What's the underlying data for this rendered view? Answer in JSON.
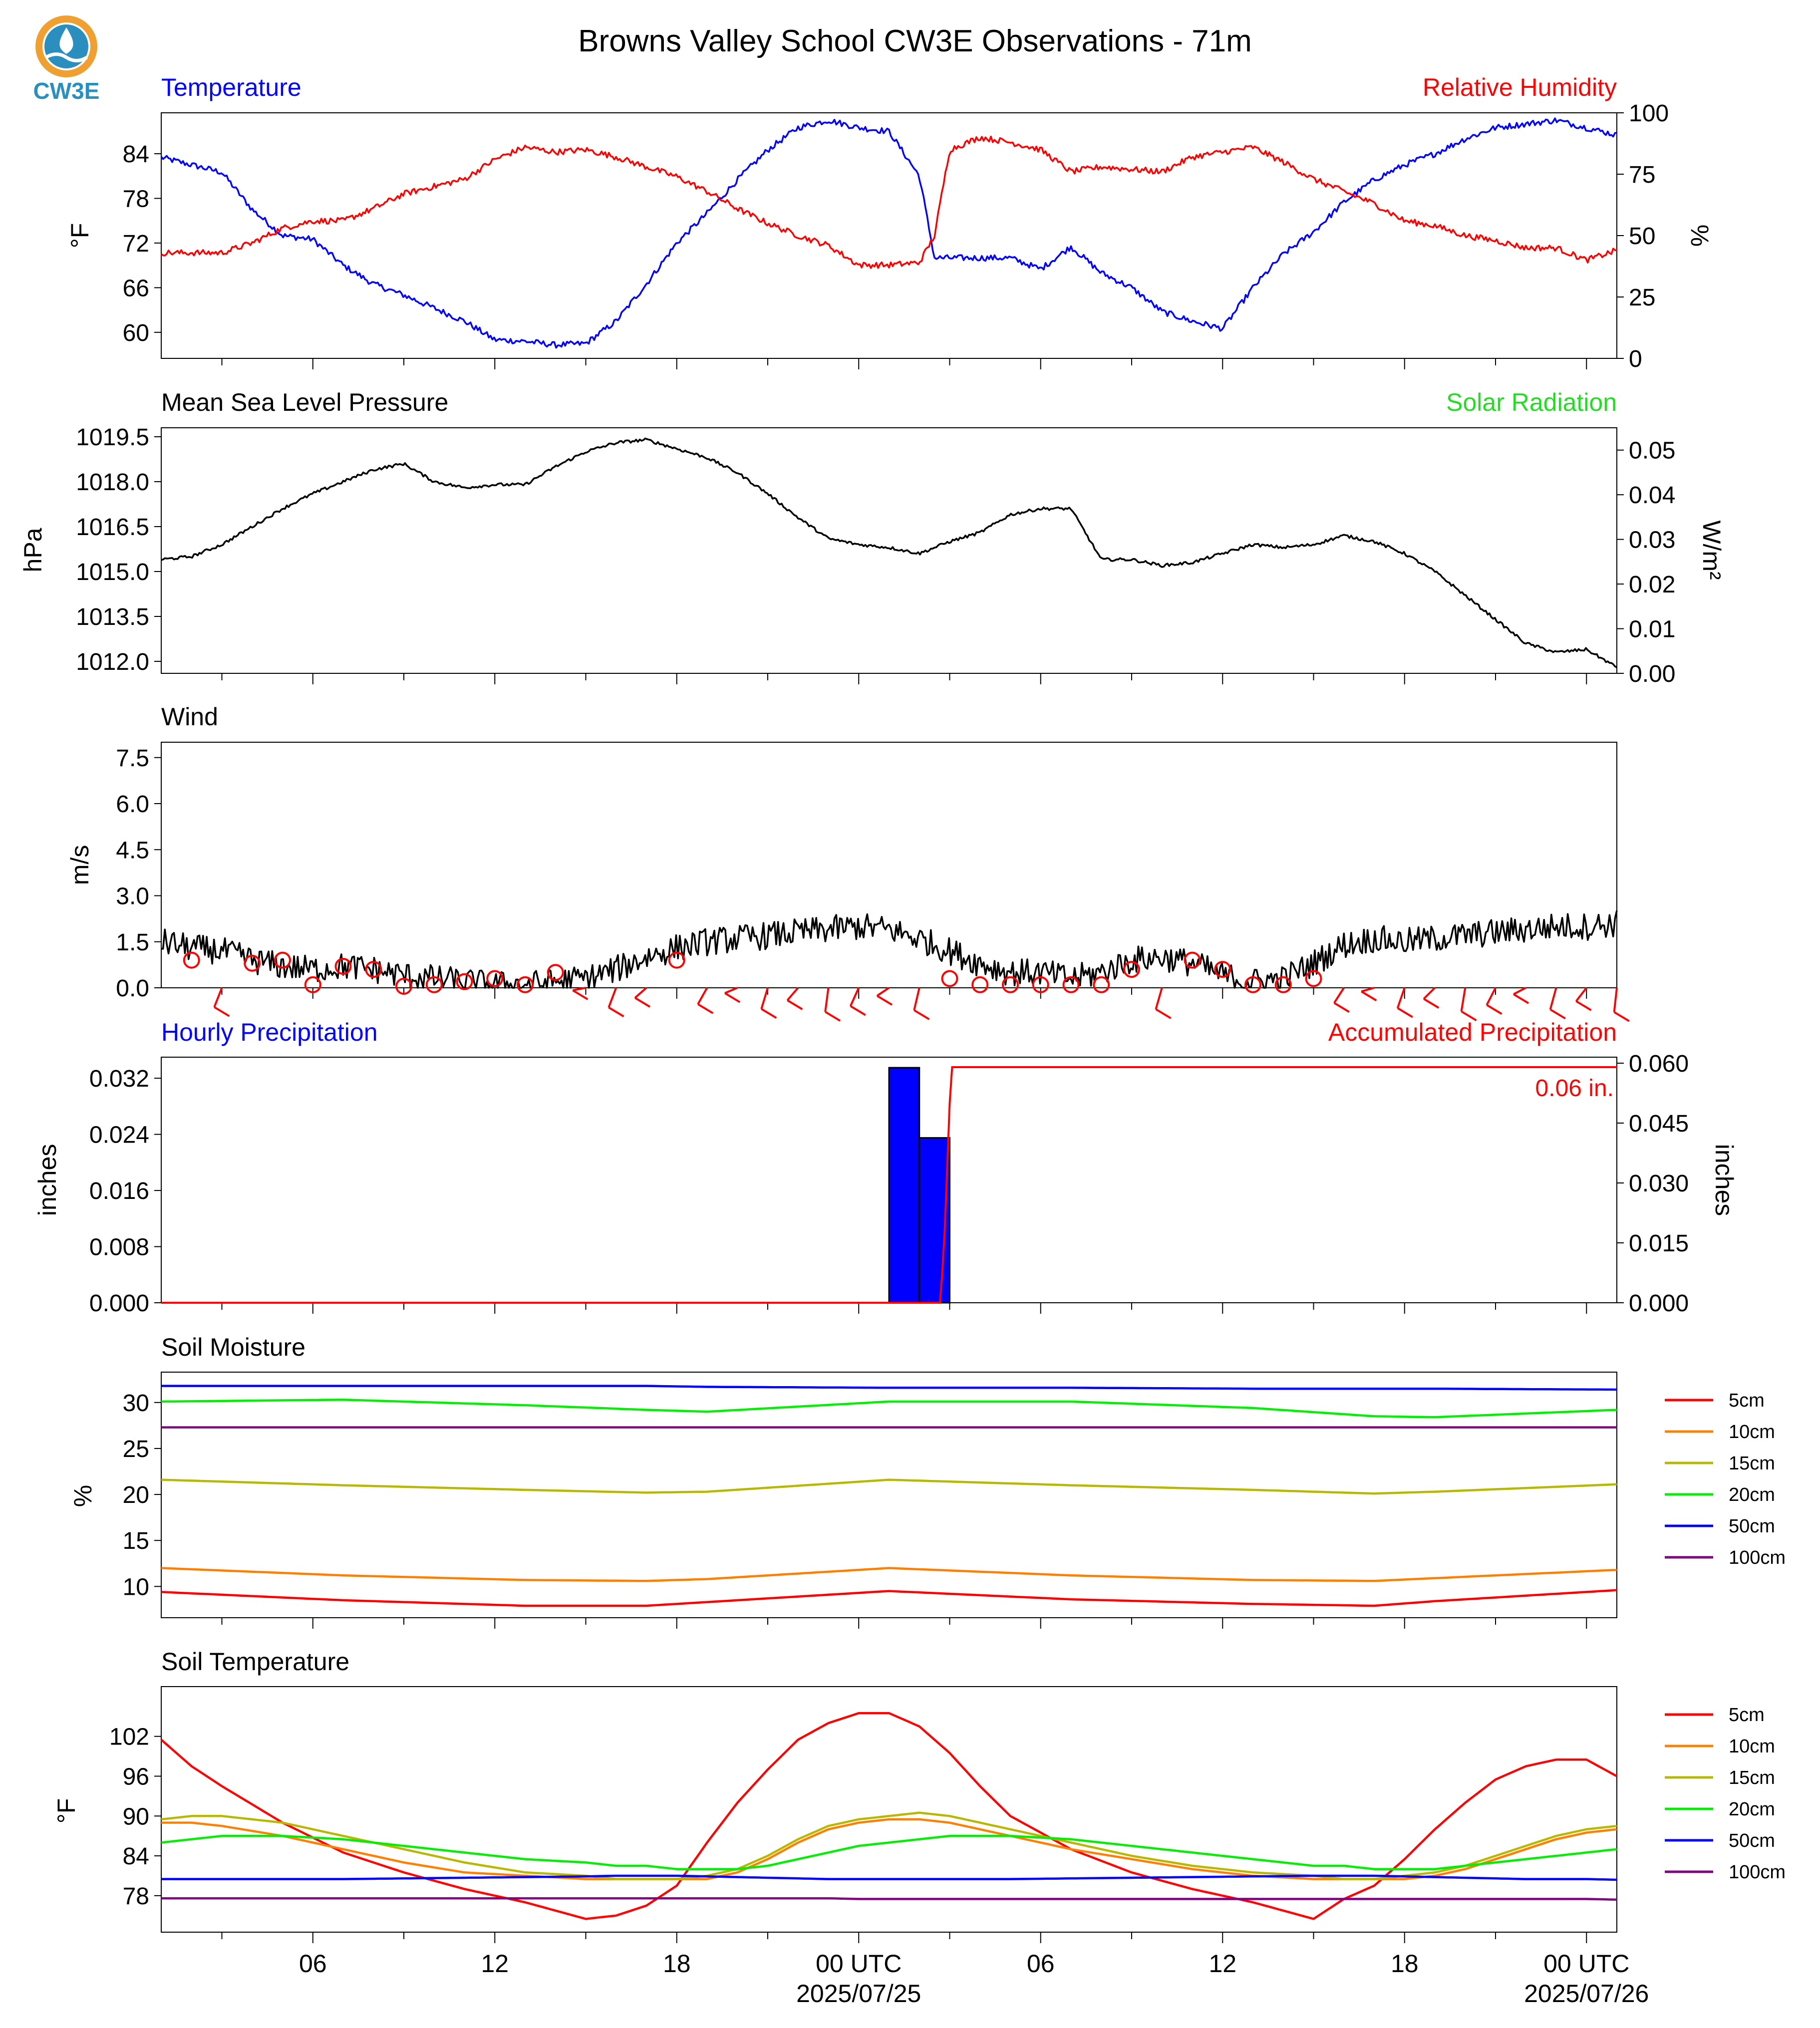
{
  "page": {
    "title": "Browns Valley School CW3E Observations - 71m",
    "logo_text": "CW3E",
    "logo_colors": {
      "ring": "#f0a030",
      "drop": "#2a8fbf",
      "wave": "#1f7fb0",
      "text": "#2a8fbf"
    }
  },
  "chart_data": [
    {
      "id": "temp_rh",
      "type": "line",
      "title_left": "Temperature",
      "title_right": "Relative Humidity",
      "title_left_color": "#0000ff",
      "title_right_color": "#ff0000",
      "ylabel": "°F",
      "ylabel_right": "%",
      "ylim": [
        56.5,
        89.5
      ],
      "yticks": [
        60,
        66,
        72,
        78,
        84
      ],
      "ylim_right": [
        0,
        100
      ],
      "yticks_right": [
        0,
        25,
        50,
        75,
        100
      ],
      "x_hours": [
        0,
        2,
        3,
        4,
        5,
        6,
        7,
        8,
        10,
        11,
        12,
        13,
        14,
        15,
        16,
        17,
        18,
        19,
        20,
        21,
        22,
        23,
        24,
        25,
        25.5,
        26,
        27,
        28,
        29,
        30,
        31,
        32,
        33,
        34,
        35,
        36,
        37,
        38,
        39,
        40,
        41,
        42,
        43,
        44,
        45,
        46,
        47,
        48
      ],
      "series": [
        {
          "name": "Temperature",
          "color": "#0000ff",
          "axis": "left",
          "noise": 0.4,
          "values": [
            83.5,
            81.5,
            76.5,
            73,
            72.5,
            69,
            66.5,
            65,
            61.5,
            59,
            58.8,
            58.3,
            58.5,
            61.5,
            66.5,
            72,
            76,
            80.5,
            84.5,
            87.5,
            88.5,
            87.5,
            87,
            81,
            70,
            70,
            70,
            70,
            68.5,
            71.5,
            68,
            66,
            62.8,
            61.5,
            60.5,
            66,
            70.5,
            73.5,
            77.5,
            80.5,
            82.5,
            84,
            86,
            87.5,
            88,
            88.5,
            87.5,
            86.5
          ]
        },
        {
          "name": "Relative Humidity",
          "color": "#ff0000",
          "axis": "right",
          "noise": 1.2,
          "values": [
            43,
            43,
            47,
            53,
            56,
            56,
            61,
            67,
            73,
            81,
            86,
            84,
            85,
            82,
            78,
            74,
            68,
            61,
            55,
            50,
            46,
            38,
            38,
            39,
            50,
            85,
            90,
            88,
            85,
            76,
            78,
            77,
            76,
            82,
            84,
            86,
            80,
            73,
            68,
            63,
            56,
            54,
            50,
            48,
            45,
            45,
            40,
            44
          ]
        }
      ]
    },
    {
      "id": "pressure",
      "type": "line",
      "title_left": "Mean Sea Level Pressure",
      "title_right": "Solar Radiation",
      "title_left_color": "#000000",
      "title_right_color": "#22dd22",
      "ylabel": "hPa",
      "ylabel_right": "W/m²",
      "ylim": [
        1011.6,
        1019.8
      ],
      "yticks": [
        1012.0,
        1013.5,
        1015.0,
        1016.5,
        1018.0,
        1019.5
      ],
      "ylim_right": [
        0.0,
        0.055
      ],
      "yticks_right": [
        0.0,
        0.01,
        0.02,
        0.03,
        0.04,
        0.05
      ],
      "x_hours": [
        0,
        1,
        2,
        3,
        4,
        5,
        6,
        7,
        8,
        9,
        10,
        11,
        12,
        13,
        14,
        15,
        16,
        17,
        18,
        19,
        20,
        21,
        22,
        23,
        24,
        25,
        26,
        27,
        28,
        29,
        30,
        31,
        32,
        33,
        34,
        35,
        36,
        37,
        38,
        39,
        40,
        41,
        42,
        43,
        44,
        45,
        46,
        47,
        48
      ],
      "series": [
        {
          "name": "Mean Sea Level Pressure",
          "color": "#000000",
          "axis": "left",
          "noise": 0.05,
          "values": [
            1015.4,
            1015.5,
            1015.9,
            1016.5,
            1017.1,
            1017.6,
            1018.0,
            1018.4,
            1018.6,
            1018.0,
            1017.8,
            1017.9,
            1017.9,
            1018.5,
            1019.0,
            1019.3,
            1019.4,
            1019.1,
            1018.8,
            1018.3,
            1017.6,
            1016.8,
            1016.1,
            1015.9,
            1015.8,
            1015.6,
            1016.0,
            1016.3,
            1016.9,
            1017.1,
            1017.1,
            1015.4,
            1015.4,
            1015.2,
            1015.3,
            1015.6,
            1015.9,
            1015.8,
            1015.9,
            1016.2,
            1016.0,
            1015.6,
            1015.0,
            1014.2,
            1013.4,
            1012.6,
            1012.3,
            1012.4,
            1011.8
          ]
        }
      ]
    },
    {
      "id": "wind",
      "type": "line",
      "title_left": "Wind",
      "title_left_color": "#000000",
      "ylabel": "m/s",
      "ylim": [
        0.0,
        8.0
      ],
      "yticks": [
        0.0,
        1.5,
        3.0,
        4.5,
        6.0,
        7.5
      ],
      "x_hours": [
        0,
        1,
        2,
        3,
        4,
        5,
        6,
        7,
        8,
        9,
        10,
        11,
        12,
        13,
        14,
        15,
        16,
        17,
        18,
        19,
        20,
        21,
        22,
        23,
        24,
        25,
        26,
        27,
        28,
        29,
        30,
        31,
        32,
        33,
        34,
        35,
        36,
        37,
        38,
        39,
        40,
        41,
        42,
        43,
        44,
        45,
        46,
        47,
        48
      ],
      "series": [
        {
          "name": "Wind speed",
          "color": "#000000",
          "noise": 0.45,
          "values": [
            1.5,
            1.3,
            1.2,
            0.9,
            0.7,
            0.6,
            0.7,
            0.6,
            0.4,
            0.3,
            0.2,
            0.1,
            0.1,
            0.2,
            0.3,
            0.6,
            1.0,
            1.3,
            1.5,
            1.6,
            1.7,
            1.8,
            1.9,
            2.0,
            1.9,
            1.6,
            1.2,
            0.8,
            0.5,
            0.5,
            0.3,
            0.5,
            0.9,
            1.0,
            0.8,
            0.4,
            0.2,
            0.3,
            0.8,
            1.4,
            1.6,
            1.5,
            1.6,
            1.7,
            1.8,
            1.9,
            2.0,
            2.0,
            2.1
          ]
        }
      ],
      "barbs_color": "#ff0000",
      "barb_hours": [
        1,
        2,
        3,
        4,
        5,
        6,
        7,
        8,
        9,
        10,
        11,
        12,
        13,
        14,
        15,
        16,
        17,
        18,
        19,
        20,
        21,
        22,
        23,
        24,
        25,
        26,
        27,
        28,
        29,
        30,
        31,
        32,
        33,
        34,
        35,
        36,
        37,
        38,
        39,
        40,
        41,
        42,
        43,
        44,
        45,
        46,
        47,
        48
      ],
      "barb_speeds": [
        0.9,
        1.4,
        0.8,
        0.9,
        0.1,
        0.7,
        0.6,
        0.0,
        0.1,
        0.2,
        0.3,
        0.1,
        0.5,
        1.0,
        1.0,
        1.0,
        0.9,
        1.2,
        1.4,
        1.6,
        1.8,
        1.9,
        1.6,
        1.4,
        1.0,
        0.3,
        0.1,
        0.1,
        0.1,
        0.1,
        0.1,
        0.6,
        1.0,
        0.9,
        0.6,
        0.1,
        0.1,
        0.3,
        1.3,
        1.3,
        1.6,
        1.8,
        2.0,
        2.0,
        2.1,
        2.2,
        2.2,
        2.4
      ]
    },
    {
      "id": "precip",
      "type": "bar",
      "title_left": "Hourly Precipitation",
      "title_right": "Accumulated Precipitation",
      "title_left_color": "#0000ff",
      "title_right_color": "#ff0000",
      "ylabel": "inches",
      "ylabel_right": "inches",
      "ylim": [
        0.0,
        0.035
      ],
      "yticks": [
        0.0,
        0.008,
        0.016,
        0.024,
        0.032
      ],
      "ylim_right": [
        0.0,
        0.0615
      ],
      "yticks_right": [
        0.0,
        0.015,
        0.03,
        0.045,
        0.06
      ],
      "bars": [
        {
          "x_hours": 25.0,
          "value": 0.0335
        },
        {
          "x_hours": 26.0,
          "value": 0.0235
        }
      ],
      "bar_color": "#0000ff",
      "accum_color": "#ff0000",
      "accum_x_hours": [
        0,
        25.7,
        25.85,
        26.0,
        26.05,
        48
      ],
      "accum_values": [
        0.0,
        0.0,
        0.02,
        0.05,
        0.059,
        0.059
      ],
      "accum_label": "0.06 in."
    },
    {
      "id": "soil_moisture",
      "type": "line",
      "title_left": "Soil Moisture",
      "title_left_color": "#000000",
      "ylabel": "%",
      "ylim": [
        6.6,
        33.3
      ],
      "yticks": [
        10,
        15,
        20,
        25,
        30
      ],
      "x_hours": [
        0,
        6,
        12,
        16,
        18,
        24,
        30,
        36,
        40,
        42,
        48
      ],
      "series": [
        {
          "name": "5cm",
          "color": "#ff0000",
          "values": [
            9.4,
            8.5,
            7.9,
            7.9,
            8.3,
            9.5,
            8.6,
            8.1,
            7.9,
            8.4,
            9.6
          ]
        },
        {
          "name": "10cm",
          "color": "#ff8000",
          "values": [
            12.0,
            11.2,
            10.7,
            10.6,
            10.8,
            12.0,
            11.2,
            10.7,
            10.6,
            10.9,
            11.8
          ]
        },
        {
          "name": "15cm",
          "color": "#b8b800",
          "values": [
            21.6,
            21.0,
            20.5,
            20.2,
            20.3,
            21.6,
            21.0,
            20.5,
            20.1,
            20.3,
            21.1
          ]
        },
        {
          "name": "20cm",
          "color": "#00ee00",
          "values": [
            30.1,
            30.3,
            29.7,
            29.2,
            29.0,
            30.1,
            30.1,
            29.4,
            28.5,
            28.4,
            29.2
          ]
        },
        {
          "name": "50cm",
          "color": "#0000ff",
          "values": [
            31.8,
            31.8,
            31.8,
            31.8,
            31.7,
            31.6,
            31.6,
            31.5,
            31.5,
            31.5,
            31.4
          ]
        },
        {
          "name": "100cm",
          "color": "#800080",
          "values": [
            27.3,
            27.3,
            27.3,
            27.3,
            27.3,
            27.3,
            27.3,
            27.3,
            27.3,
            27.3,
            27.3
          ]
        }
      ],
      "legend": "outside-right"
    },
    {
      "id": "soil_temp",
      "type": "line",
      "title_left": "Soil Temperature",
      "title_left_color": "#000000",
      "ylabel": "°F",
      "ylim": [
        72.5,
        109.5
      ],
      "yticks": [
        78,
        84,
        90,
        96,
        102
      ],
      "x_hours": [
        0,
        1,
        2,
        4,
        6,
        8,
        10,
        12,
        14,
        15,
        16,
        17,
        18,
        19,
        20,
        21,
        22,
        23,
        24,
        25,
        26,
        27,
        28,
        30,
        32,
        34,
        36,
        38,
        39,
        40,
        41,
        42,
        43,
        44,
        45,
        46,
        47,
        48
      ],
      "series": [
        {
          "name": "5cm",
          "color": "#ff0000",
          "values": [
            101.5,
            97.5,
            94.5,
            89,
            84.5,
            81.5,
            79,
            77,
            74.5,
            75,
            76.5,
            79.5,
            86,
            92,
            97,
            101.5,
            104,
            105.5,
            105.5,
            103.5,
            99.5,
            94.5,
            90,
            85,
            81.5,
            79,
            77,
            74.5,
            77.5,
            79.5,
            83.5,
            88,
            92,
            95.5,
            97.5,
            98.5,
            98.5,
            96
          ]
        },
        {
          "name": "10cm",
          "color": "#ff8000",
          "values": [
            89,
            89,
            88.5,
            87,
            85,
            83,
            81.5,
            81,
            80.5,
            80.5,
            80.5,
            80.5,
            80.5,
            81.5,
            83.5,
            86,
            88,
            89,
            89.5,
            89.5,
            89,
            88,
            87,
            85,
            83.5,
            82,
            81,
            80.5,
            80.5,
            80.5,
            80.5,
            81,
            82,
            83.5,
            85,
            86.5,
            87.5,
            88
          ]
        },
        {
          "name": "15cm",
          "color": "#b8b800",
          "values": [
            89.5,
            90,
            90,
            89,
            87,
            85,
            83,
            81.5,
            81,
            80.5,
            80.5,
            80.5,
            81,
            82,
            84,
            86.5,
            88.5,
            89.5,
            90,
            90.5,
            90,
            89,
            88,
            86,
            84,
            82.5,
            81.5,
            81,
            80.5,
            80.5,
            81,
            81.5,
            82.5,
            84,
            85.5,
            87,
            88,
            88.5
          ]
        },
        {
          "name": "20cm",
          "color": "#00ee00",
          "values": [
            86,
            86.5,
            87,
            87,
            86.5,
            85.5,
            84.5,
            83.5,
            83,
            82.5,
            82.5,
            82,
            82,
            82,
            82.5,
            83.5,
            84.5,
            85.5,
            86,
            86.5,
            87,
            87,
            87,
            86.5,
            85.5,
            84.5,
            83.5,
            82.5,
            82.5,
            82,
            82,
            82,
            82.5,
            83,
            83.5,
            84,
            84.5,
            85
          ]
        },
        {
          "name": "50cm",
          "color": "#0000ff",
          "values": [
            80.5,
            80.5,
            80.5,
            80.5,
            80.5,
            80.6,
            80.7,
            80.8,
            80.9,
            81,
            81,
            81,
            80.9,
            80.8,
            80.7,
            80.6,
            80.5,
            80.5,
            80.5,
            80.5,
            80.5,
            80.5,
            80.5,
            80.6,
            80.7,
            80.8,
            80.9,
            81,
            81,
            81,
            80.9,
            80.8,
            80.7,
            80.6,
            80.5,
            80.5,
            80.5,
            80.4
          ]
        },
        {
          "name": "100cm",
          "color": "#800080",
          "values": [
            77.6,
            77.6,
            77.6,
            77.6,
            77.6,
            77.6,
            77.6,
            77.6,
            77.6,
            77.6,
            77.6,
            77.6,
            77.6,
            77.6,
            77.6,
            77.6,
            77.6,
            77.5,
            77.5,
            77.5,
            77.5,
            77.5,
            77.5,
            77.5,
            77.5,
            77.5,
            77.5,
            77.5,
            77.5,
            77.5,
            77.5,
            77.5,
            77.5,
            77.5,
            77.5,
            77.5,
            77.5,
            77.4
          ]
        }
      ],
      "legend": "outside-right"
    }
  ],
  "x_axis": {
    "range_hours": [
      0,
      48
    ],
    "major_labels": [
      {
        "hour": 5,
        "text": "06"
      },
      {
        "hour": 11,
        "text": "12"
      },
      {
        "hour": 17,
        "text": "18"
      },
      {
        "hour": 23,
        "text": "00 UTC",
        "sub": "2025/07/25"
      },
      {
        "hour": 29,
        "text": "06"
      },
      {
        "hour": 35,
        "text": "12"
      },
      {
        "hour": 41,
        "text": "18"
      },
      {
        "hour": 47,
        "text": "00 UTC",
        "sub": "2025/07/26"
      }
    ]
  }
}
